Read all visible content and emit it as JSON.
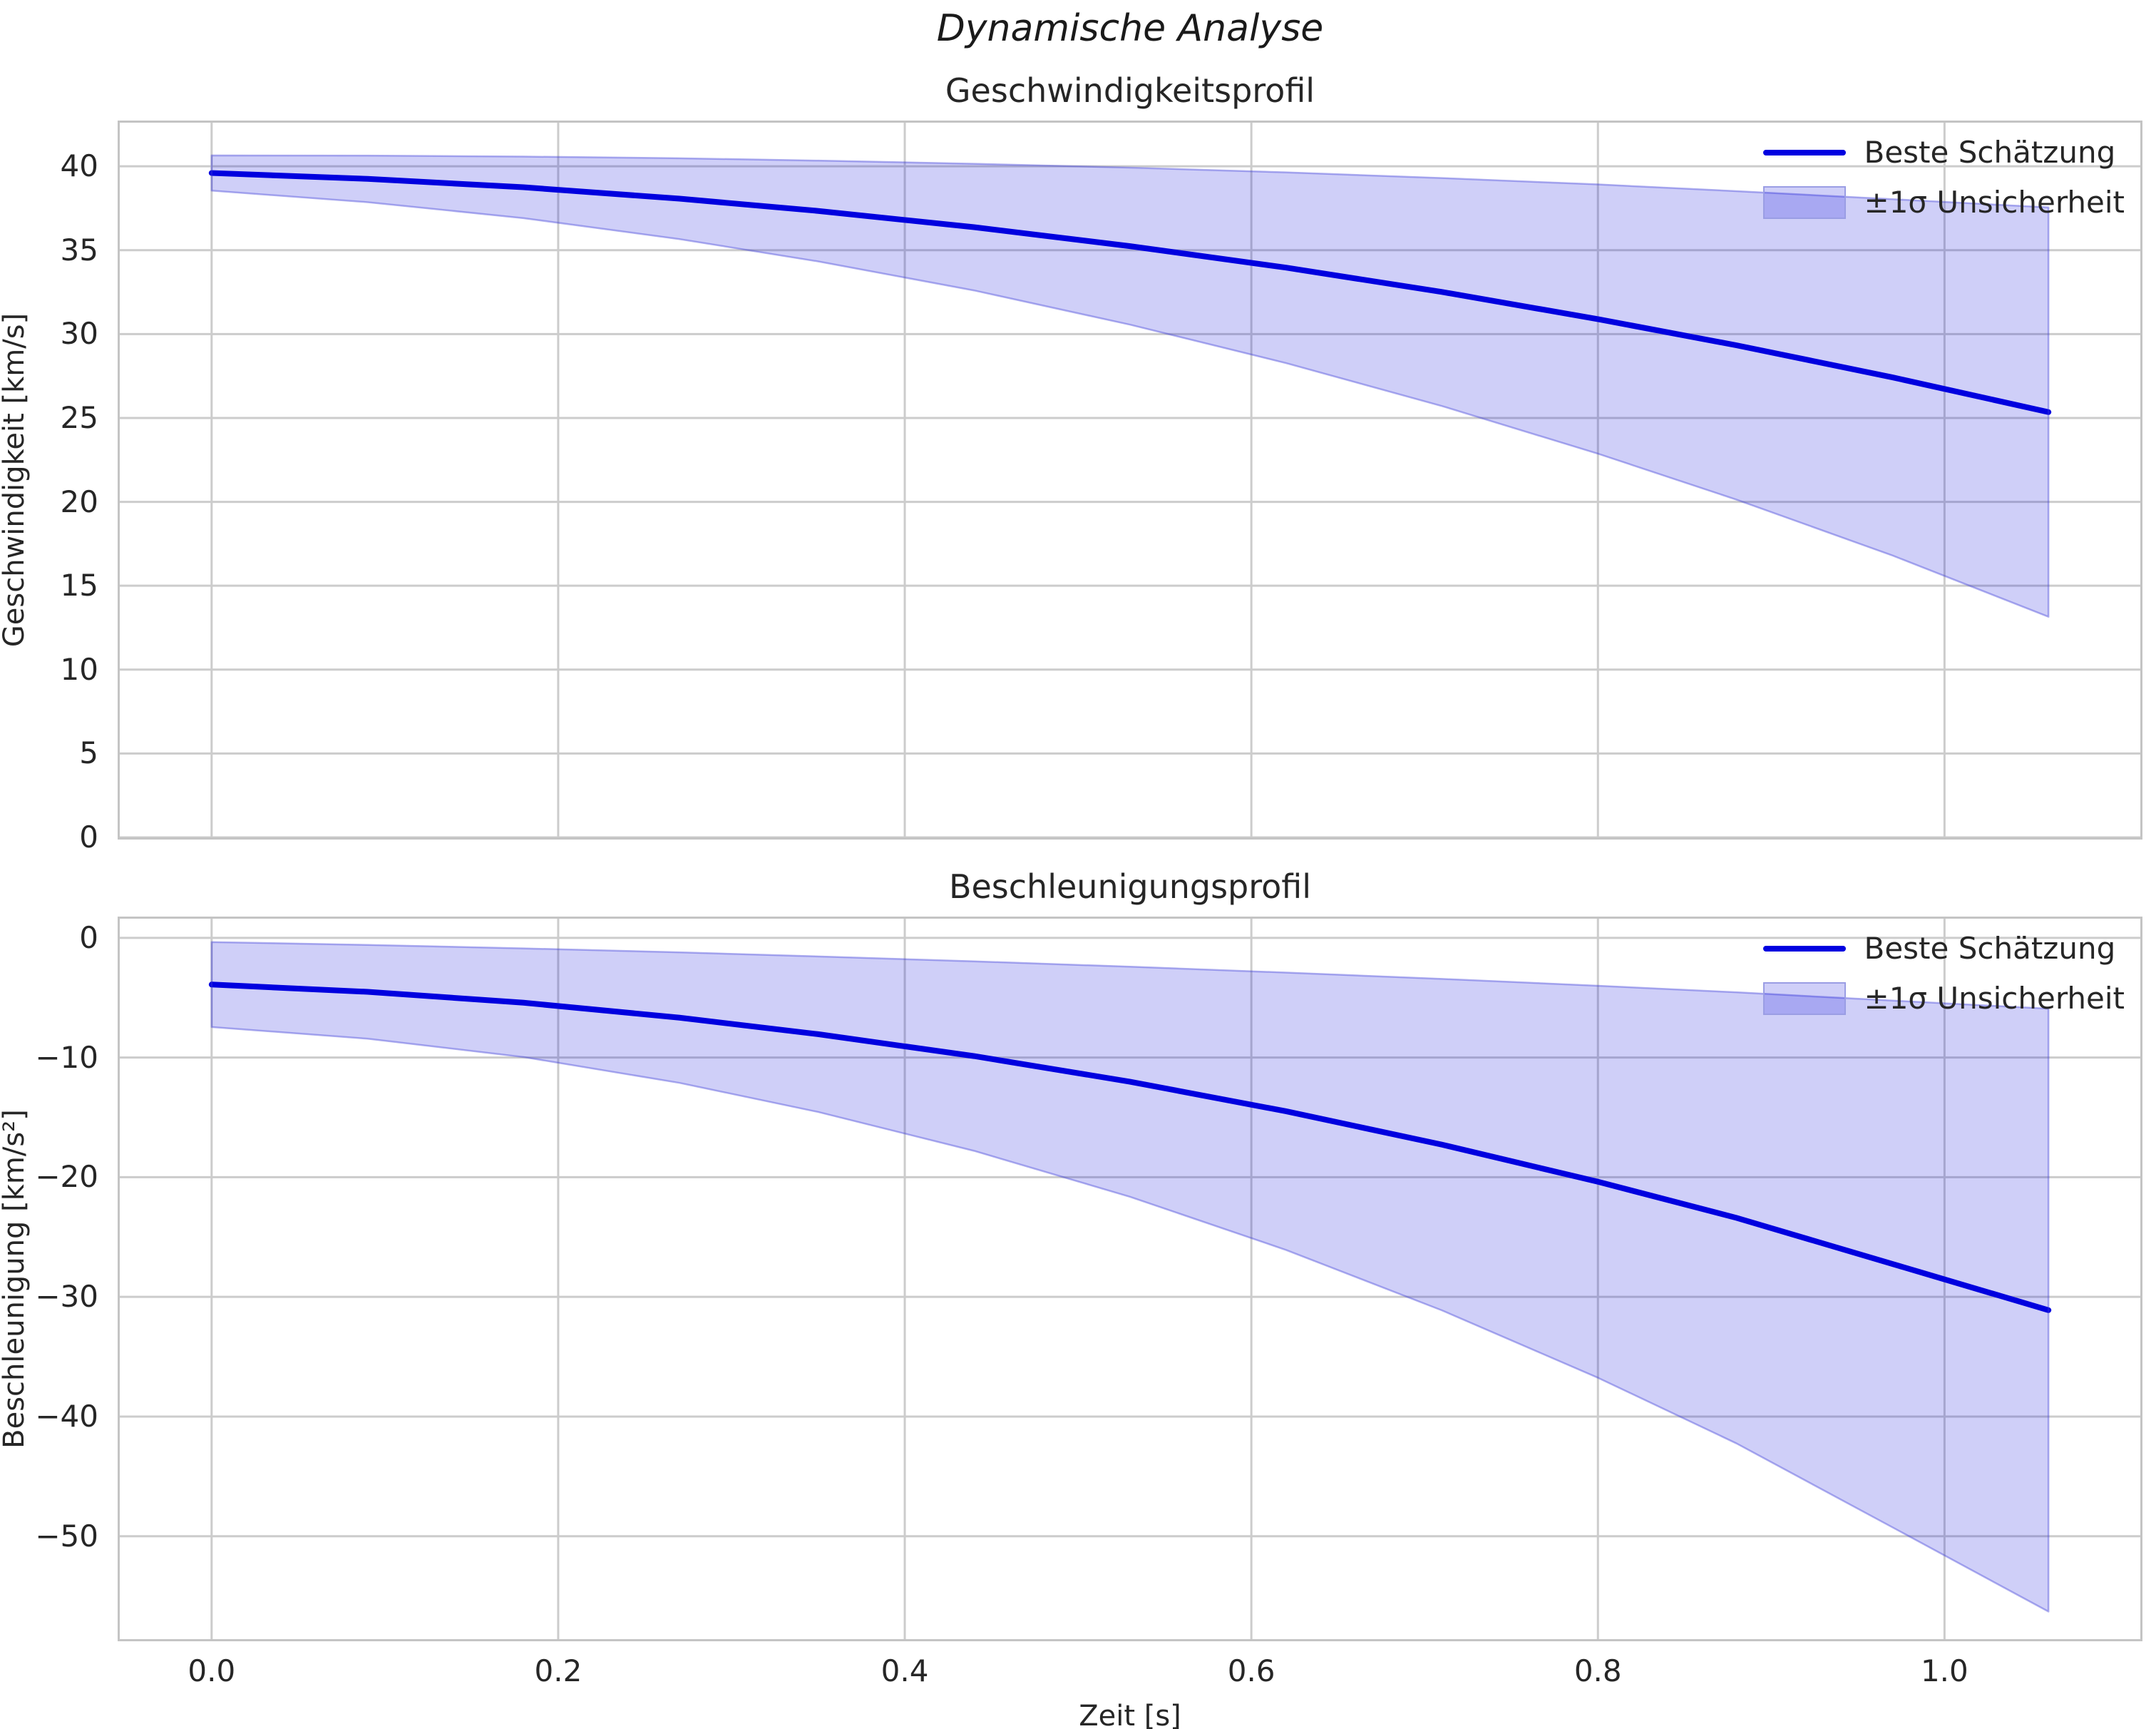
{
  "figure": {
    "title": "Dynamische Analyse"
  },
  "colors": {
    "line": "#0000e0",
    "band_fill": "rgba(0,0,220,0.19)",
    "band_edge": "rgba(60,60,215,0.40)",
    "grid": "#cccccc",
    "spine": "#c4c4c4",
    "text": "#262626"
  },
  "chart_data": [
    {
      "type": "line",
      "title": "Geschwindigkeitsprofil",
      "ylabel": "Geschwindigkeit [km/s]",
      "xlabel": "",
      "legend": [
        "Beste Schätzung",
        "±1σ Unsicherheit"
      ],
      "legend_position": "upper right",
      "grid": true,
      "xlim": [
        -0.053,
        1.113
      ],
      "ylim": [
        0,
        42.6
      ],
      "xticks": [
        0.0,
        0.2,
        0.4,
        0.6,
        0.8,
        1.0
      ],
      "yticks": [
        0,
        5,
        10,
        15,
        20,
        25,
        30,
        35,
        40
      ],
      "show_xtick_labels": false,
      "x": [
        0,
        0.09,
        0.18,
        0.27,
        0.35,
        0.44,
        0.53,
        0.62,
        0.71,
        0.8,
        0.88,
        0.97,
        1.06
      ],
      "series": [
        {
          "name": "Beste Schätzung",
          "style": "line",
          "values": [
            39.6,
            39.25,
            38.75,
            38.07,
            37.34,
            36.37,
            35.24,
            33.96,
            32.51,
            30.89,
            29.33,
            27.42,
            25.35
          ]
        },
        {
          "name": "±1σ Unsicherheit",
          "style": "band",
          "upper": [
            40.65,
            40.64,
            40.58,
            40.48,
            40.34,
            40.15,
            39.92,
            39.64,
            39.3,
            38.92,
            38.52,
            38.04,
            37.55
          ],
          "lower": [
            38.55,
            37.86,
            36.91,
            35.66,
            34.33,
            32.6,
            30.56,
            28.27,
            25.71,
            22.87,
            20.13,
            16.8,
            13.15
          ]
        }
      ]
    },
    {
      "type": "line",
      "title": "Beschleunigungsprofil",
      "ylabel": "Beschleunigung [km/s²]",
      "xlabel": "Zeit [s]",
      "legend": [
        "Beste Schätzung",
        "±1σ Unsicherheit"
      ],
      "legend_position": "upper right",
      "grid": true,
      "xlim": [
        -0.053,
        1.113
      ],
      "ylim": [
        -58.6,
        1.6
      ],
      "xticks": [
        0.0,
        0.2,
        0.4,
        0.6,
        0.8,
        1.0
      ],
      "yticks": [
        0,
        -10,
        -20,
        -30,
        -40,
        -50
      ],
      "show_xtick_labels": true,
      "x": [
        0,
        0.09,
        0.18,
        0.27,
        0.35,
        0.44,
        0.53,
        0.62,
        0.71,
        0.8,
        0.88,
        0.97,
        1.06
      ],
      "series": [
        {
          "name": "Beste Schätzung",
          "style": "line",
          "values": [
            -3.9,
            -4.51,
            -5.42,
            -6.67,
            -8.05,
            -9.88,
            -12.02,
            -14.49,
            -17.28,
            -20.38,
            -23.4,
            -27.25,
            -31.11
          ]
        },
        {
          "name": "±1σ Unsicherheit",
          "style": "band",
          "upper": [
            -0.35,
            -0.59,
            -0.88,
            -1.21,
            -1.55,
            -1.96,
            -2.41,
            -2.9,
            -3.43,
            -4.0,
            -4.55,
            -5.24,
            -5.92
          ],
          "lower": [
            -7.45,
            -8.43,
            -9.96,
            -12.12,
            -14.55,
            -17.8,
            -21.64,
            -26.08,
            -31.13,
            -36.76,
            -42.25,
            -49.26,
            -56.3
          ]
        }
      ]
    }
  ]
}
